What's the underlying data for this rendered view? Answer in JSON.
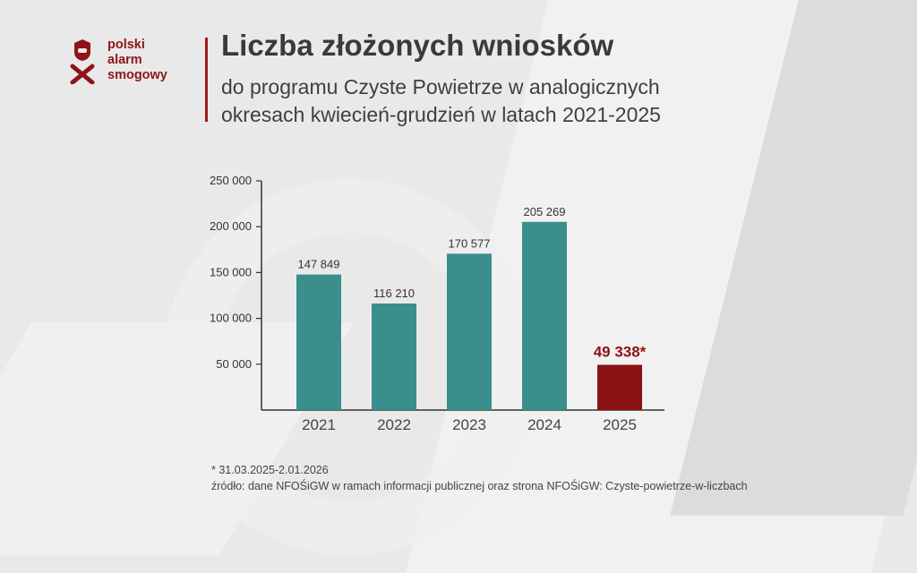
{
  "brand": {
    "logo_lines": [
      "polski",
      "alarm",
      "smogowy"
    ],
    "color": "#8e1417"
  },
  "header": {
    "title": "Liczba złożonych wniosków",
    "subtitle_lines": [
      "do programu Czyste Powietrze w analogicznych",
      "okresach kwiecień-grudzień w latach 2021-2025"
    ]
  },
  "chart_data": {
    "type": "bar",
    "categories": [
      "2021",
      "2022",
      "2023",
      "2024",
      "2025"
    ],
    "values": [
      147849,
      116210,
      170577,
      205269,
      49338
    ],
    "data_labels": [
      "147 849",
      "116 210",
      "170 577",
      "205 269",
      "49 338*"
    ],
    "y_ticks": [
      50000,
      100000,
      150000,
      200000,
      250000
    ],
    "y_tick_labels": [
      "50 000",
      "100 000",
      "150 000",
      "200 000",
      "250 000"
    ],
    "ylim": [
      0,
      250000
    ],
    "bar_colors": [
      "#3a8f8d",
      "#3a8f8d",
      "#3a8f8d",
      "#3a8f8d",
      "#8b1213"
    ],
    "highlight_label_color": "#8b1213",
    "grid": false,
    "legend": "none"
  },
  "footer": {
    "lines": [
      "* 31.03.2025-2.01.2026",
      "źródło: dane NFOŚiGW w ramach informacji publicznej oraz strona NFOŚiGW: Czyste-powietrze-w-liczbach"
    ]
  }
}
